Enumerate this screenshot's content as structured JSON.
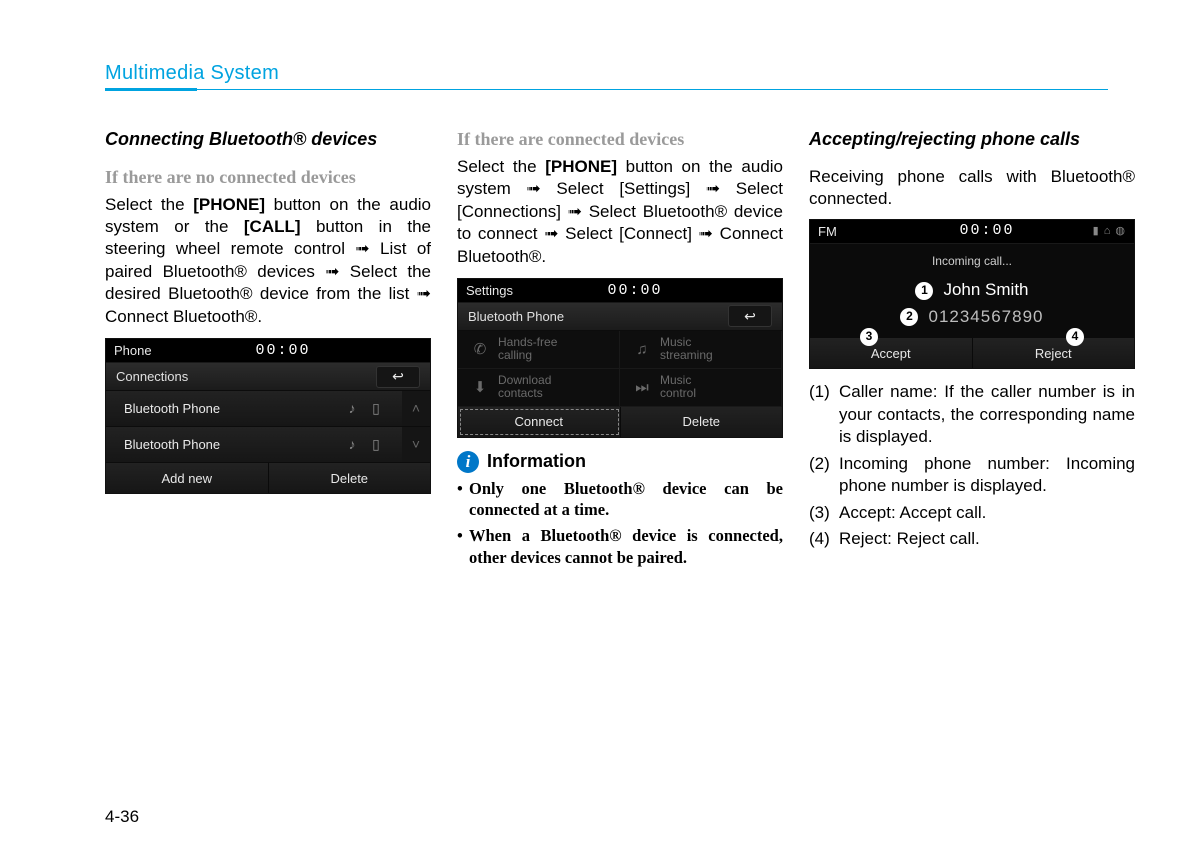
{
  "header": {
    "section": "Multimedia System",
    "accent_color": "#00a3e0"
  },
  "page_number": "4-36",
  "col1": {
    "heading": "Connecting Bluetooth® devices",
    "sub": "If there are no connected devices",
    "para_parts": {
      "p1": "Select the ",
      "b1": "[PHONE]",
      "p2": " button on the audio system or the ",
      "b2": "[CALL]",
      "p3": " button in the steering wheel remote control ➟ List of paired Bluetooth® devices ➟ Select the desired Bluetooth® device from the list ➟ Connect Bluetooth®."
    },
    "ui": {
      "title": "Phone",
      "clock": "00:00",
      "sub": "Connections",
      "rows": [
        "Bluetooth Phone",
        "Bluetooth Phone"
      ],
      "bottom": [
        "Add new",
        "Delete"
      ]
    }
  },
  "col2": {
    "sub": "If there are connected devices",
    "para_parts": {
      "p1": "Select the ",
      "b1": "[PHONE]",
      "p2": " button on the audio system ➟ Select [Settings] ➟ Select [Connections] ➟ Select Bluetooth® device to connect ➟ Select [Connect] ➟ Connect Bluetooth®."
    },
    "ui": {
      "title": "Settings",
      "clock": "00:00",
      "sub": "Bluetooth Phone",
      "cells": [
        {
          "glyph": "✆",
          "label": "Hands-free\ncalling"
        },
        {
          "glyph": "♫",
          "label": "Music\nstreaming"
        },
        {
          "glyph": "⬇",
          "label": "Download\ncontacts"
        },
        {
          "glyph": "⏭",
          "label": "Music\ncontrol"
        }
      ],
      "bottom": [
        "Connect",
        "Delete"
      ]
    },
    "info": {
      "title": "Information",
      "items": [
        "Only one Bluetooth® device can be connected at a time.",
        "When a Bluetooth® device is connected, other devices cannot be paired."
      ]
    }
  },
  "col3": {
    "heading": "Accepting/rejecting phone calls",
    "para": "Receiving phone calls with Bluetooth® connected.",
    "ui": {
      "title": "FM",
      "clock": "00:00",
      "status_icons": "▮ ⌂ ◍",
      "incoming": "Incoming call...",
      "caller": "John Smith",
      "number": "01234567890",
      "bottom": [
        "Accept",
        "Reject"
      ],
      "markers": {
        "m1": "1",
        "m2": "2",
        "m3": "3",
        "m4": "4"
      }
    },
    "list": [
      {
        "n": "(1)",
        "t": "Caller name: If the caller number is in your contacts, the corresponding name is displayed."
      },
      {
        "n": "(2)",
        "t": "Incoming phone number: Incoming phone number is displayed."
      },
      {
        "n": "(3)",
        "t": "Accept: Accept call."
      },
      {
        "n": "(4)",
        "t": "Reject: Reject call."
      }
    ]
  }
}
